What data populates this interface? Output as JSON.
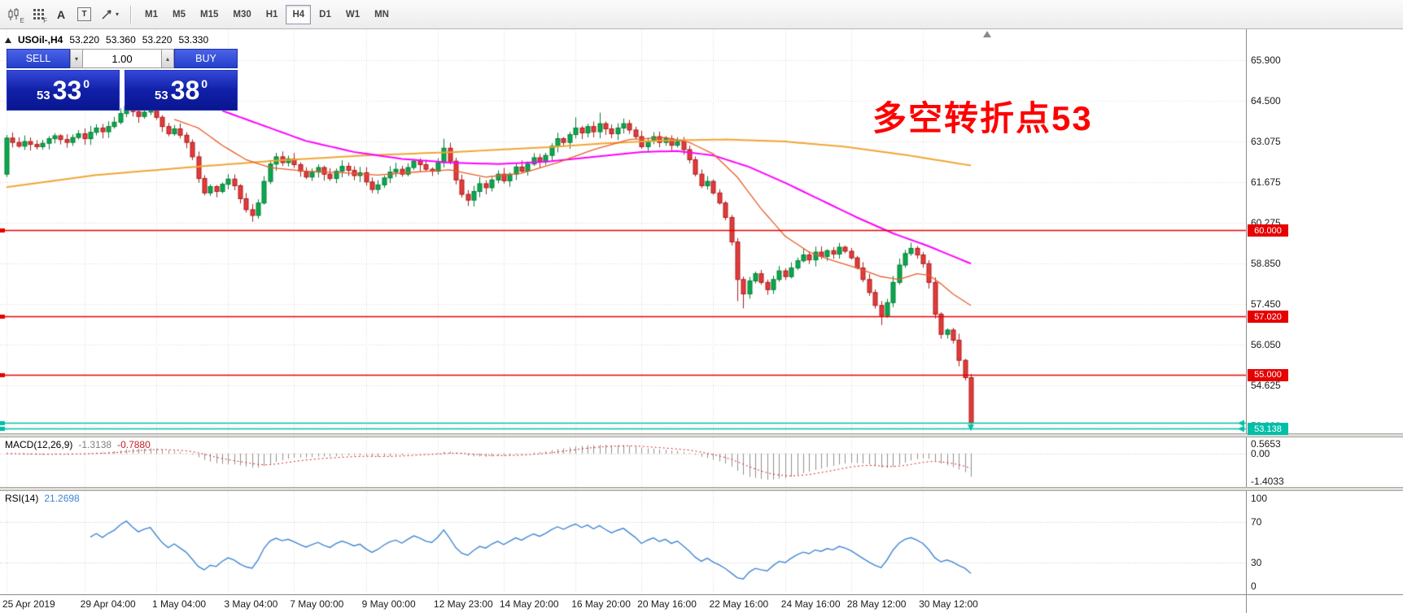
{
  "toolbar": {
    "icons": [
      "candlestick-chart-icon",
      "tick-grid-icon",
      "text-label-icon",
      "text-tool-icon",
      "draw-tools-icon"
    ],
    "shortcut_letters": [
      "E",
      "F"
    ],
    "letter_a": "A",
    "letter_t": "T",
    "timeframes": [
      {
        "label": "M1",
        "active": false
      },
      {
        "label": "M5",
        "active": false
      },
      {
        "label": "M15",
        "active": false
      },
      {
        "label": "M30",
        "active": false
      },
      {
        "label": "H1",
        "active": false
      },
      {
        "label": "H4",
        "active": true
      },
      {
        "label": "D1",
        "active": false
      },
      {
        "label": "W1",
        "active": false
      },
      {
        "label": "MN",
        "active": false
      }
    ]
  },
  "quote_bar": {
    "symbol": "USOil-,H4",
    "open": "53.220",
    "high": "53.360",
    "low": "53.220",
    "close": "53.330"
  },
  "trade_panel": {
    "sell_label": "SELL",
    "buy_label": "BUY",
    "volume": "1.00",
    "sell_price": {
      "prefix": "53",
      "big": "33",
      "sup": "0"
    },
    "buy_price": {
      "prefix": "53",
      "big": "38",
      "sup": "0"
    }
  },
  "annotation": {
    "text": "多空转折点53",
    "color": "#ff0000"
  },
  "macd_panel": {
    "title": "MACD(12,26,9)",
    "value_main": "-1.3138",
    "value_signal": "-0.7880",
    "axis_labels": [
      "0.5653",
      "0.00",
      "-1.4033"
    ],
    "axis_values": [
      0.5653,
      0,
      -1.4033
    ]
  },
  "rsi_panel": {
    "title": "RSI(14)",
    "value": "21.2698",
    "axis_labels": [
      "100",
      "70",
      "30",
      "0"
    ],
    "axis_values": [
      100,
      70,
      30,
      0
    ],
    "levels": [
      70,
      30
    ]
  },
  "chart_data": {
    "type": "candlestick",
    "symbol": "USOil-",
    "timeframe": "H4",
    "current_bar": {
      "open": 53.22,
      "high": 53.36,
      "low": 53.22,
      "close": 53.33
    },
    "price_axis": {
      "labels": [
        "65.900",
        "64.500",
        "63.075",
        "61.675",
        "60.275",
        "58.850",
        "57.450",
        "56.050",
        "54.625",
        "53.220"
      ],
      "values": [
        65.9,
        64.5,
        63.075,
        61.675,
        60.275,
        58.85,
        57.45,
        56.05,
        54.625,
        53.22
      ]
    },
    "first_open": 61.95,
    "closes": [
      63.2,
      63.05,
      62.92,
      63.08,
      62.98,
      62.9,
      63.02,
      63.18,
      63.28,
      63.15,
      63.05,
      63.22,
      63.35,
      63.18,
      63.4,
      63.55,
      63.42,
      63.6,
      63.75,
      64.05,
      64.3,
      64.12,
      63.95,
      64.1,
      64.2,
      63.92,
      63.6,
      63.35,
      63.52,
      63.3,
      63.05,
      62.55,
      61.8,
      61.3,
      61.52,
      61.35,
      61.6,
      61.78,
      61.55,
      61.1,
      60.72,
      60.52,
      60.95,
      61.7,
      62.3,
      62.55,
      62.35,
      62.48,
      62.28,
      62.05,
      61.85,
      62.02,
      62.18,
      61.95,
      61.8,
      62.05,
      62.22,
      62.08,
      61.9,
      62.0,
      61.68,
      61.42,
      61.58,
      61.82,
      62.02,
      62.12,
      61.95,
      62.18,
      62.4,
      62.28,
      62.12,
      62.05,
      62.35,
      62.85,
      62.4,
      61.75,
      61.25,
      61.05,
      61.35,
      61.62,
      61.48,
      61.75,
      61.95,
      61.72,
      61.95,
      62.2,
      62.05,
      62.3,
      62.52,
      62.38,
      62.6,
      62.92,
      63.18,
      63.05,
      63.32,
      63.55,
      63.38,
      63.6,
      63.42,
      63.7,
      63.52,
      63.35,
      63.55,
      63.7,
      63.48,
      63.25,
      62.9,
      63.1,
      63.25,
      63.05,
      63.18,
      62.95,
      63.08,
      62.8,
      62.45,
      61.95,
      61.55,
      61.7,
      61.3,
      60.95,
      60.45,
      59.6,
      58.3,
      57.8,
      58.25,
      58.5,
      58.2,
      57.95,
      58.3,
      58.6,
      58.4,
      58.7,
      58.95,
      59.15,
      58.98,
      59.25,
      59.1,
      59.3,
      59.18,
      59.42,
      59.28,
      59.05,
      58.7,
      58.3,
      57.85,
      57.4,
      57.05,
      57.5,
      58.2,
      58.8,
      59.2,
      59.38,
      59.15,
      58.85,
      58.2,
      57.1,
      56.4,
      56.55,
      56.2,
      55.5,
      54.9,
      53.33
    ],
    "wick_overrides": {
      "0": {
        "l": 61.85
      },
      "20": {
        "h": 64.45
      },
      "41": {
        "l": 60.3
      },
      "73": {
        "h": 63.18
      },
      "77": {
        "l": 60.85
      },
      "95": {
        "h": 63.92
      },
      "99": {
        "h": 64.08
      },
      "122": {
        "l": 57.55
      },
      "123": {
        "l": 57.3
      },
      "146": {
        "l": 56.72
      },
      "151": {
        "h": 59.58
      },
      "161": {
        "l": 53.13
      }
    },
    "ma_orange": [
      [
        0,
        61.5
      ],
      [
        15,
        61.92
      ],
      [
        30,
        62.18
      ],
      [
        45,
        62.42
      ],
      [
        60,
        62.6
      ],
      [
        75,
        62.72
      ],
      [
        90,
        62.88
      ],
      [
        100,
        63.02
      ],
      [
        110,
        63.12
      ],
      [
        120,
        63.15
      ],
      [
        130,
        63.08
      ],
      [
        140,
        62.9
      ],
      [
        150,
        62.62
      ],
      [
        161,
        62.25
      ]
    ],
    "ma_magenta": [
      [
        36,
        64.15
      ],
      [
        42,
        63.7
      ],
      [
        50,
        63.1
      ],
      [
        58,
        62.72
      ],
      [
        66,
        62.48
      ],
      [
        74,
        62.35
      ],
      [
        82,
        62.3
      ],
      [
        90,
        62.38
      ],
      [
        98,
        62.55
      ],
      [
        106,
        62.72
      ],
      [
        112,
        62.75
      ],
      [
        118,
        62.6
      ],
      [
        124,
        62.2
      ],
      [
        130,
        61.65
      ],
      [
        136,
        61.05
      ],
      [
        142,
        60.45
      ],
      [
        148,
        59.9
      ],
      [
        154,
        59.45
      ],
      [
        161,
        58.85
      ]
    ],
    "ma_fast": [
      [
        28,
        63.85
      ],
      [
        32,
        63.55
      ],
      [
        36,
        62.95
      ],
      [
        40,
        62.45
      ],
      [
        44,
        62.18
      ],
      [
        50,
        62.05
      ],
      [
        56,
        62.0
      ],
      [
        62,
        61.92
      ],
      [
        68,
        62.02
      ],
      [
        74,
        62.1
      ],
      [
        80,
        61.85
      ],
      [
        86,
        61.98
      ],
      [
        92,
        62.35
      ],
      [
        98,
        62.8
      ],
      [
        104,
        63.15
      ],
      [
        110,
        63.22
      ],
      [
        114,
        63.05
      ],
      [
        118,
        62.65
      ],
      [
        122,
        61.85
      ],
      [
        126,
        60.75
      ],
      [
        130,
        59.8
      ],
      [
        134,
        59.25
      ],
      [
        138,
        58.95
      ],
      [
        142,
        58.7
      ],
      [
        146,
        58.4
      ],
      [
        149,
        58.3
      ],
      [
        152,
        58.5
      ],
      [
        154,
        58.45
      ],
      [
        156,
        58.15
      ],
      [
        158,
        57.8
      ],
      [
        161,
        57.4
      ]
    ],
    "hlines": [
      {
        "price": 60.0,
        "color": "#e60000",
        "label": "60.000",
        "arrow": false
      },
      {
        "price": 57.02,
        "color": "#e60000",
        "label": "57.020",
        "arrow": false
      },
      {
        "price": 55.0,
        "color": "#e60000",
        "label": "55.000",
        "arrow": false
      },
      {
        "price": 53.35,
        "color": "#00bfa8",
        "label": null,
        "arrow": true
      },
      {
        "price": 53.138,
        "color": "#00bfa8",
        "label": "53.138",
        "arrow": true
      }
    ],
    "time_ticks": [
      {
        "bar": 0,
        "label": "25 Apr 2019"
      },
      {
        "bar": 13,
        "label": "29 Apr 04:00"
      },
      {
        "bar": 25,
        "label": "1 May 04:00"
      },
      {
        "bar": 37,
        "label": "3 May 04:00"
      },
      {
        "bar": 48,
        "label": "7 May 00:00"
      },
      {
        "bar": 60,
        "label": "9 May 00:00"
      },
      {
        "bar": 72,
        "label": "12 May 23:00"
      },
      {
        "bar": 83,
        "label": "14 May 20:00"
      },
      {
        "bar": 95,
        "label": "16 May 20:00"
      },
      {
        "bar": 106,
        "label": "20 May 16:00"
      },
      {
        "bar": 118,
        "label": "22 May 16:00"
      },
      {
        "bar": 130,
        "label": "24 May 16:00"
      },
      {
        "bar": 141,
        "label": "28 May 12:00"
      },
      {
        "bar": 153,
        "label": "30 May 12:00"
      }
    ],
    "indicator_params": {
      "macd": [
        12,
        26,
        9
      ],
      "rsi": 14
    },
    "colors": {
      "up": "#0aa84f",
      "up_border": "#067d36",
      "down": "#e33b3b",
      "down_border": "#a91d1d",
      "ma_orange": "#f0a532",
      "ma_magenta": "#ff00ff",
      "ma_fast": "#e85c28",
      "macd_hist": "#8f8f8f",
      "macd_signal": "#d42020",
      "rsi_line": "#3f86d2",
      "grid": "#d8d8d8",
      "sell_marker": "#00bfa8"
    }
  }
}
